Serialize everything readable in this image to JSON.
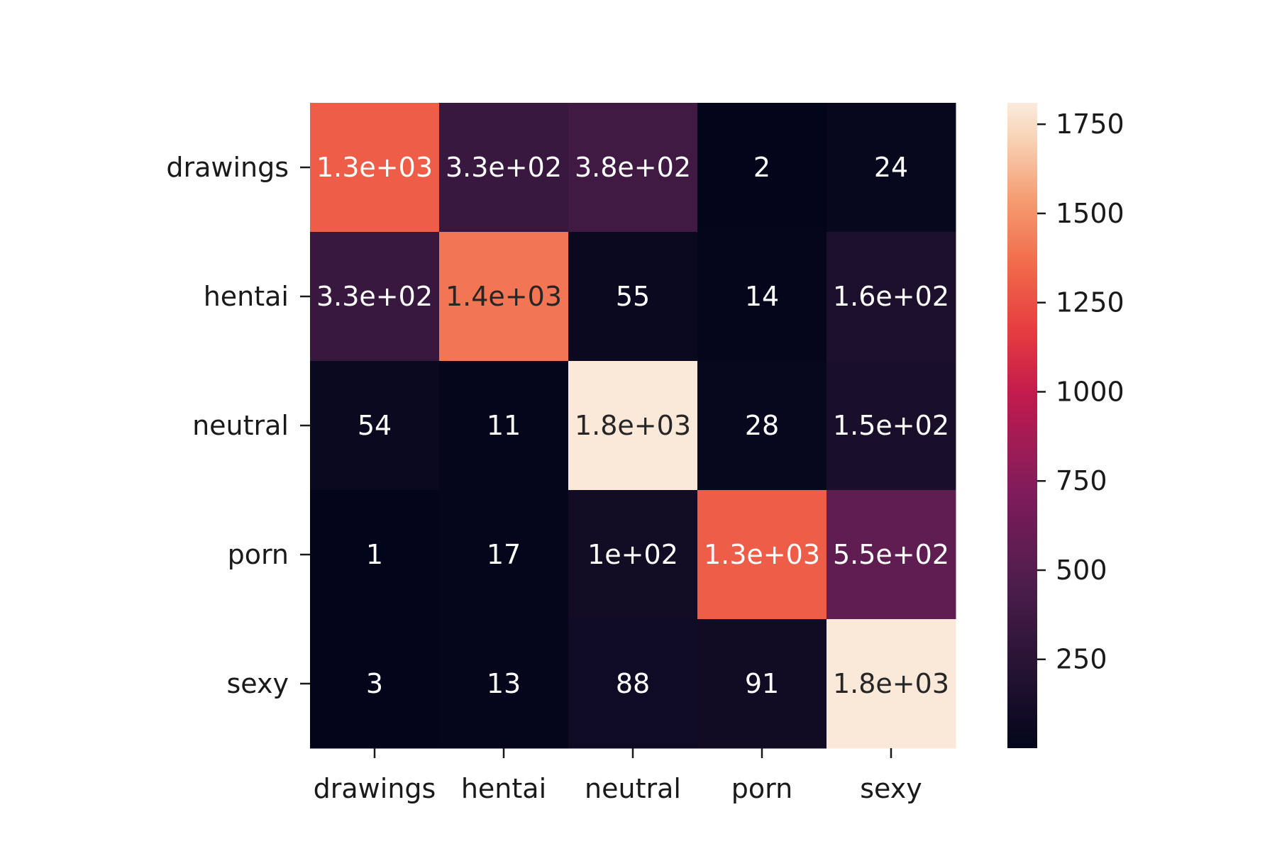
{
  "chart_data": {
    "type": "heatmap",
    "title": "",
    "xlabel": "",
    "ylabel": "",
    "x_labels": [
      "drawings",
      "hentai",
      "neutral",
      "porn",
      "sexy"
    ],
    "y_labels": [
      "drawings",
      "hentai",
      "neutral",
      "porn",
      "sexy"
    ],
    "values": [
      [
        1300,
        330,
        380,
        2,
        24
      ],
      [
        330,
        1400,
        55,
        14,
        160
      ],
      [
        54,
        11,
        1800,
        28,
        150
      ],
      [
        1,
        17,
        100,
        1300,
        550
      ],
      [
        3,
        13,
        88,
        91,
        1800
      ]
    ],
    "annotations": [
      [
        "1.3e+03",
        "3.3e+02",
        "3.8e+02",
        "2",
        "24"
      ],
      [
        "3.3e+02",
        "1.4e+03",
        "55",
        "14",
        "1.6e+02"
      ],
      [
        "54",
        "11",
        "1.8e+03",
        "28",
        "1.5e+02"
      ],
      [
        "1",
        "17",
        "1e+02",
        "1.3e+03",
        "5.5e+02"
      ],
      [
        "3",
        "13",
        "88",
        "91",
        "1.8e+03"
      ]
    ],
    "colormap": "rocket",
    "colorbar": {
      "range": [
        1,
        1810
      ],
      "ticks": [
        250,
        500,
        750,
        1000,
        1250,
        1500,
        1750
      ],
      "tick_labels": [
        "250",
        "500",
        "750",
        "1000",
        "1250",
        "1500",
        "1750"
      ]
    },
    "grid": false,
    "legend": "colorbar-right"
  }
}
